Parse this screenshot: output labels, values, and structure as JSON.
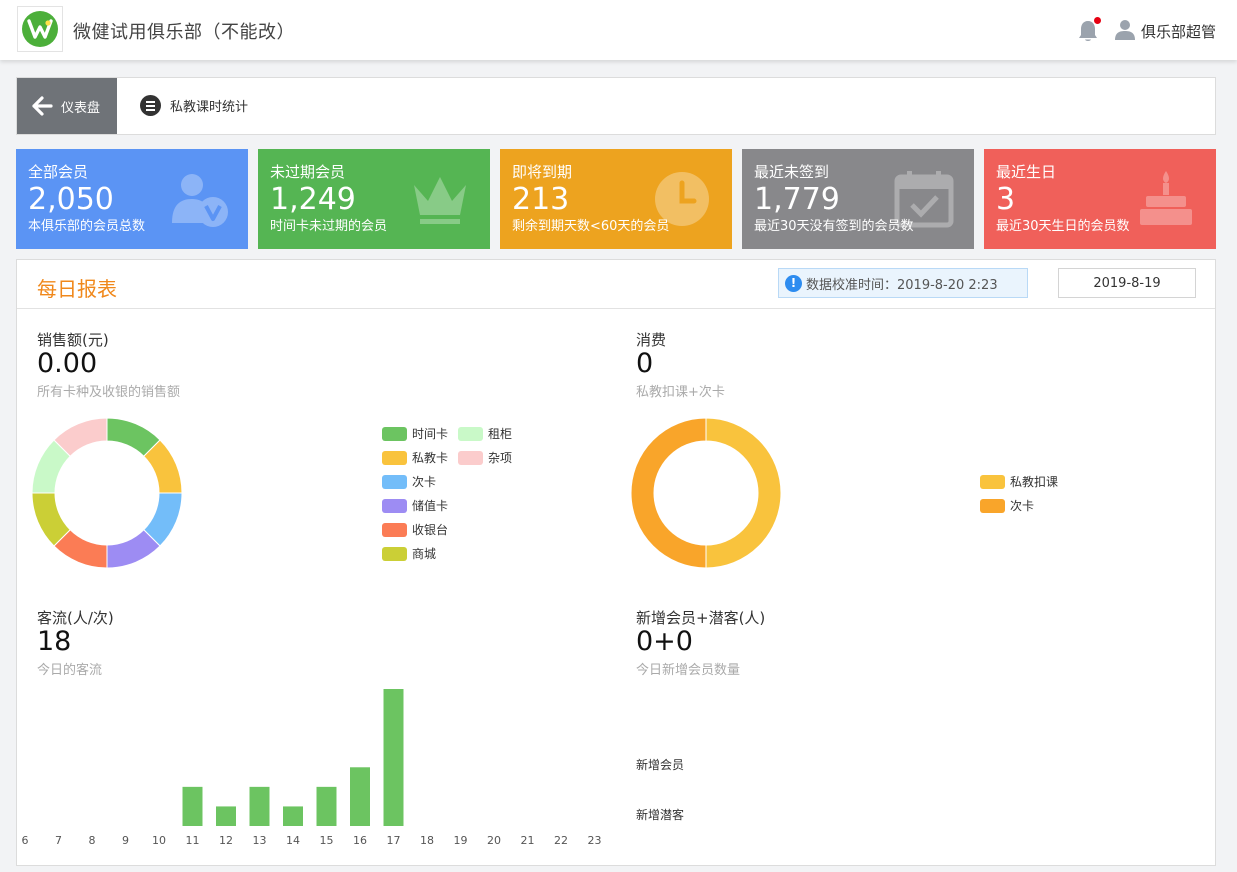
{
  "header": {
    "club_name": "微健试用俱乐部（不能改）",
    "user_name": "俱乐部超管",
    "logo_letter": "W"
  },
  "breadcrumb": {
    "back_label": "仪表盘",
    "current": "私教课时统计"
  },
  "cards": [
    {
      "title": "全部会员",
      "value": "2,050",
      "desc": "本俱乐部的会员总数",
      "color": "#5b94f4",
      "icon": "member-v-icon"
    },
    {
      "title": "未过期会员",
      "value": "1,249",
      "desc": "时间卡未过期的会员",
      "color": "#55b553",
      "icon": "crown-icon"
    },
    {
      "title": "即将到期",
      "value": "213",
      "desc": "剩余到期天数<60天的会员",
      "color": "#eda31f",
      "icon": "clock-icon"
    },
    {
      "title": "最近未签到",
      "value": "1,779",
      "desc": "最近30天没有签到的会员数",
      "color": "#88888b",
      "icon": "calendar-check-icon"
    },
    {
      "title": "最近生日",
      "value": "3",
      "desc": "最近30天生日的会员数",
      "color": "#f0605a",
      "icon": "cake-icon"
    }
  ],
  "report": {
    "title": "每日报表",
    "notice": "数据校准时间：2019-8-20 2:23",
    "date": "2019-8-19",
    "sales": {
      "label": "销售额(元)",
      "value": "0.00",
      "desc": "所有卡种及收银的销售额"
    },
    "consume": {
      "label": "消费",
      "value": "0",
      "desc": "私教扣课+次卡"
    },
    "traffic": {
      "label": "客流(人/次)",
      "value": "18",
      "desc": "今日的客流"
    },
    "new_members": {
      "label": "新增会员+潜客(人)",
      "value": "0+0",
      "desc": "今日新增会员数量",
      "row_labels": [
        "新增会员",
        "新增潜客"
      ]
    }
  },
  "chart_data": [
    {
      "type": "pie",
      "series": [
        {
          "name": "时间卡",
          "value": 1,
          "color": "#6cc461"
        },
        {
          "name": "私教卡",
          "value": 1,
          "color": "#f9c33d"
        },
        {
          "name": "次卡",
          "value": 1,
          "color": "#73bdf9"
        },
        {
          "name": "储值卡",
          "value": 1,
          "color": "#9d8cf3"
        },
        {
          "name": "收银台",
          "value": 1,
          "color": "#fb7c55"
        },
        {
          "name": "商城",
          "value": 1,
          "color": "#cbcf36"
        },
        {
          "name": "租柜",
          "value": 1,
          "color": "#c9f9c8"
        },
        {
          "name": "杂项",
          "value": 1,
          "color": "#fbcccc"
        }
      ],
      "legend_columns": [
        [
          "时间卡",
          "私教卡",
          "次卡",
          "储值卡",
          "收银台",
          "商城"
        ],
        [
          "租柜",
          "杂项"
        ]
      ]
    },
    {
      "type": "pie",
      "series": [
        {
          "name": "私教扣课",
          "value": 1,
          "color": "#f9c33d"
        },
        {
          "name": "次卡",
          "value": 1,
          "color": "#f9a52a"
        }
      ]
    },
    {
      "type": "bar",
      "categories": [
        "6",
        "7",
        "8",
        "9",
        "10",
        "11",
        "12",
        "13",
        "14",
        "15",
        "16",
        "17",
        "18",
        "19",
        "20",
        "21",
        "22",
        "23"
      ],
      "values": [
        0,
        0,
        0,
        0,
        0,
        2,
        1,
        2,
        1,
        2,
        3,
        7,
        0,
        0,
        0,
        0,
        0,
        0
      ],
      "color": "#6cc461",
      "ylim": [
        0,
        7
      ]
    }
  ]
}
